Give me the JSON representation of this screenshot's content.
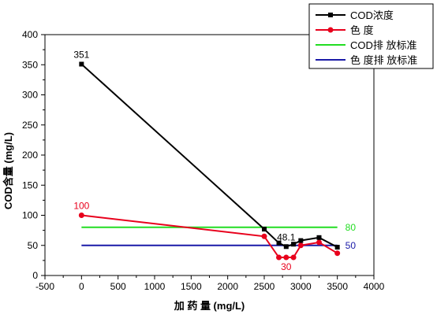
{
  "chart_data": {
    "type": "line",
    "xlabel": "加 药 量 (mg/L)",
    "ylabel": "COD含量 (mg/L)",
    "xlim": [
      -500,
      4000
    ],
    "ylim": [
      0,
      400
    ],
    "x_ticks": [
      -500,
      0,
      500,
      1000,
      1500,
      2000,
      2500,
      3000,
      3500,
      4000
    ],
    "y_ticks": [
      0,
      50,
      100,
      150,
      200,
      250,
      300,
      350,
      400
    ],
    "grid": false,
    "legend_position": "top-right",
    "series": [
      {
        "name": "COD浓度",
        "color": "#000000",
        "marker": "square",
        "x": [
          0,
          2500,
          2700,
          2800,
          2900,
          3000,
          3250,
          3500
        ],
        "y": [
          351,
          77,
          54,
          48,
          52,
          58,
          63,
          47
        ]
      },
      {
        "name": "色 度",
        "color": "#e8001c",
        "marker": "circle",
        "x": [
          0,
          2500,
          2700,
          2800,
          2900,
          3000,
          3250,
          3500
        ],
        "y": [
          100,
          65,
          30,
          30,
          30,
          50,
          55,
          37
        ]
      },
      {
        "name": "COD排 放标准",
        "color": "#22dd22",
        "marker": "none",
        "x": [
          0,
          3500
        ],
        "y": [
          80,
          80
        ]
      },
      {
        "name": "色 度排 放标准",
        "color": "#1a1aa8",
        "marker": "none",
        "x": [
          0,
          3500
        ],
        "y": [
          50,
          50
        ]
      }
    ],
    "annotations": [
      {
        "text": "351",
        "x": 0,
        "y": 351,
        "color": "#000000",
        "pos": "above"
      },
      {
        "text": "100",
        "x": 0,
        "y": 100,
        "color": "#e8001c",
        "pos": "above"
      },
      {
        "text": "48.1",
        "x": 2800,
        "y": 48,
        "color": "#000000",
        "pos": "above"
      },
      {
        "text": "30",
        "x": 2800,
        "y": 30,
        "color": "#e8001c",
        "pos": "below"
      },
      {
        "text": "80",
        "x": 3500,
        "y": 80,
        "color": "#22dd22",
        "pos": "right"
      },
      {
        "text": "50",
        "x": 3500,
        "y": 50,
        "color": "#1a1aa8",
        "pos": "right"
      }
    ]
  }
}
